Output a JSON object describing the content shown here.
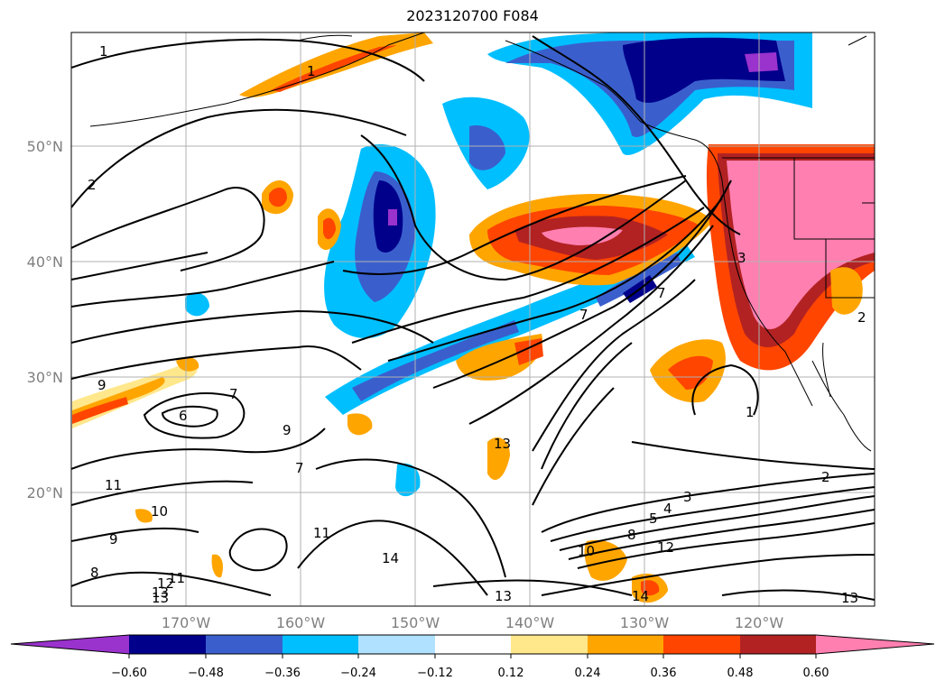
{
  "title": "2023120700 F084",
  "map": {
    "lat_labels": [
      "50°N",
      "40°N",
      "30°N",
      "20°N"
    ],
    "lon_labels": [
      "170°W",
      "160°W",
      "150°W",
      "140°W",
      "130°W",
      "120°W"
    ],
    "contour_labels": [
      "1",
      "2",
      "1",
      "9",
      "7",
      "6",
      "9",
      "11",
      "10",
      "9",
      "8",
      "7",
      "11",
      "14",
      "13",
      "12",
      "13",
      "11",
      "13",
      "2",
      "3",
      "4",
      "5",
      "7",
      "8",
      "10",
      "12",
      "13",
      "14",
      "13",
      "1",
      "2",
      "3",
      "7"
    ]
  },
  "colorbar": {
    "colors": [
      "#9a32cd",
      "#00008b",
      "#3a5fcd",
      "#00bfff",
      "#b0e2ff",
      "#ffffff",
      "#ffe78c",
      "#ffa500",
      "#ff4500",
      "#b22222",
      "#ff7fb0"
    ],
    "tick_labels": [
      "−0.60",
      "−0.48",
      "−0.36",
      "−0.24",
      "−0.12",
      "0.12",
      "0.24",
      "0.36",
      "0.48",
      "0.60"
    ]
  }
}
